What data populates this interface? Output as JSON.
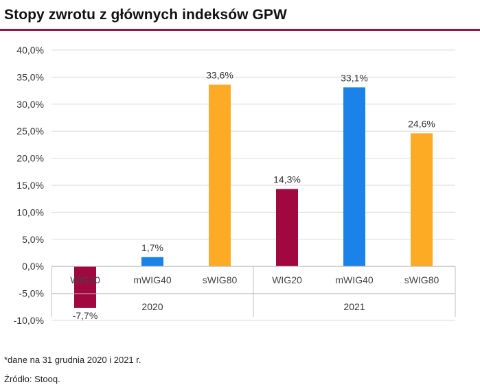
{
  "title": "Stopy zwrotu z głównych indeksów GPW",
  "footnote": "*dane na 31 grudnia 2020 i 2021 r.",
  "source": "Źródło: Stooq.",
  "colors": {
    "brand": "#9b1048",
    "wig20": "#a0083f",
    "mwig40": "#1a82e8",
    "swig80": "#fdab25",
    "grid": "#d9d9d9"
  },
  "chart_data": {
    "type": "bar",
    "title": "Stopy zwrotu z głównych indeksów GPW",
    "ylim": [
      -10,
      40
    ],
    "yticks": [
      -10,
      -5,
      0,
      5,
      10,
      15,
      20,
      25,
      30,
      35,
      40
    ],
    "ytick_labels": [
      "-10,0%",
      "-5,0%",
      "0,0%",
      "5,0%",
      "10,0%",
      "15,0%",
      "20,0%",
      "25,0%",
      "30,0%",
      "35,0%",
      "40,0%"
    ],
    "groups": [
      {
        "label": "2020",
        "bars": [
          {
            "category": "WIG20",
            "value": -7.7,
            "label": "-7,7%",
            "color": "#a0083f"
          },
          {
            "category": "mWIG40",
            "value": 1.7,
            "label": "1,7%",
            "color": "#1a82e8"
          },
          {
            "category": "sWIG80",
            "value": 33.6,
            "label": "33,6%",
            "color": "#fdab25"
          }
        ]
      },
      {
        "label": "2021",
        "bars": [
          {
            "category": "WIG20",
            "value": 14.3,
            "label": "14,3%",
            "color": "#a0083f"
          },
          {
            "category": "mWIG40",
            "value": 33.1,
            "label": "33,1%",
            "color": "#1a82e8"
          },
          {
            "category": "sWIG80",
            "value": 24.6,
            "label": "24,6%",
            "color": "#fdab25"
          }
        ]
      }
    ],
    "grid": true
  }
}
